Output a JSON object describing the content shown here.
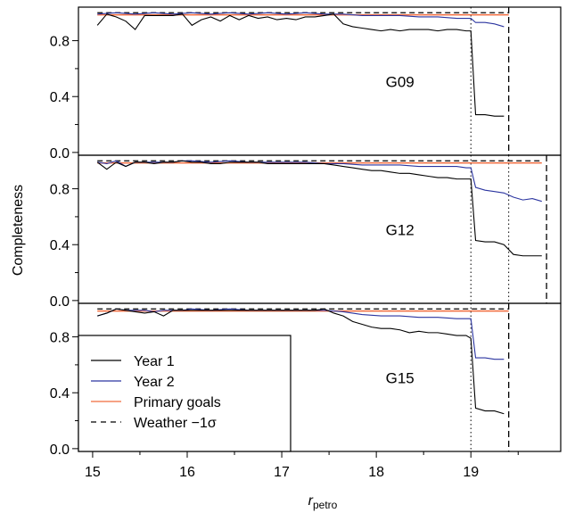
{
  "chart_data": {
    "type": "line",
    "ylabel": "Completeness",
    "xlabel": "r",
    "xlabel_sub": "petro",
    "xlim": [
      14.85,
      19.95
    ],
    "ylim": [
      -0.02,
      1.04
    ],
    "xticks": [
      15,
      16,
      17,
      18,
      19
    ],
    "xtick_labels": [
      "15",
      "16",
      "17",
      "18",
      "19"
    ],
    "yticks": [
      0.0,
      0.4,
      0.8
    ],
    "ytick_labels": [
      "0.0",
      "0.4",
      "0.8"
    ],
    "legend": {
      "position": "bottom-left",
      "entries": [
        {
          "label": "Year 1",
          "color": "#000000",
          "dash": "solid"
        },
        {
          "label": "Year 2",
          "color": "#2b35a0",
          "dash": "solid"
        },
        {
          "label": "Primary goals",
          "color": "#f06a3c",
          "dash": "solid"
        },
        {
          "label": "Weather −1σ",
          "color": "#000000",
          "dash": "dashed"
        }
      ]
    },
    "colors": {
      "year1": "#000000",
      "year2": "#2b35a0",
      "primary": "#f06a3c"
    },
    "panels": [
      {
        "label": "G09",
        "primary_x": [
          15.05,
          19.4
        ],
        "primary_y": [
          0.985,
          0.985
        ],
        "weather_y": 1.0,
        "dotted_x": 19.0,
        "dashed_x": 19.4,
        "year1": {
          "x": [
            15.05,
            15.15,
            15.25,
            15.35,
            15.45,
            15.55,
            15.65,
            15.75,
            15.85,
            15.95,
            16.05,
            16.15,
            16.25,
            16.35,
            16.45,
            16.55,
            16.65,
            16.75,
            16.85,
            16.95,
            17.05,
            17.15,
            17.25,
            17.35,
            17.45,
            17.55,
            17.65,
            17.75,
            17.85,
            17.95,
            18.05,
            18.15,
            18.25,
            18.35,
            18.45,
            18.55,
            18.65,
            18.75,
            18.85,
            18.95,
            19.0,
            19.05,
            19.15,
            19.25,
            19.35
          ],
          "y": [
            0.91,
            0.99,
            0.97,
            0.94,
            0.88,
            0.98,
            0.98,
            0.98,
            0.98,
            0.99,
            0.91,
            0.95,
            0.97,
            0.94,
            0.98,
            0.95,
            0.98,
            0.96,
            0.97,
            0.95,
            0.96,
            0.95,
            0.97,
            0.97,
            0.98,
            0.99,
            0.92,
            0.9,
            0.89,
            0.88,
            0.87,
            0.88,
            0.87,
            0.88,
            0.88,
            0.88,
            0.87,
            0.88,
            0.88,
            0.87,
            0.87,
            0.27,
            0.27,
            0.26,
            0.26
          ]
        },
        "year2": {
          "x": [
            15.05,
            15.25,
            15.45,
            15.65,
            15.85,
            16.05,
            16.25,
            16.45,
            16.65,
            16.85,
            17.05,
            17.25,
            17.45,
            17.65,
            17.85,
            18.05,
            18.25,
            18.45,
            18.65,
            18.85,
            18.95,
            19.0,
            19.05,
            19.15,
            19.25,
            19.35
          ],
          "y": [
            0.99,
            1.0,
            0.99,
            1.0,
            0.99,
            1.0,
            0.99,
            1.0,
            0.99,
            1.0,
            0.99,
            1.0,
            0.99,
            0.99,
            0.98,
            0.98,
            0.98,
            0.97,
            0.97,
            0.96,
            0.96,
            0.96,
            0.93,
            0.93,
            0.92,
            0.9
          ]
        }
      },
      {
        "label": "G12",
        "primary_x": [
          15.05,
          19.75
        ],
        "primary_y": [
          0.985,
          0.985
        ],
        "weather_y": 1.0,
        "dotted_x": 19.0,
        "dotted2_x": 19.4,
        "dashed_x": 19.8,
        "year1": {
          "x": [
            15.05,
            15.15,
            15.25,
            15.35,
            15.45,
            15.55,
            15.65,
            15.75,
            15.85,
            15.95,
            16.05,
            16.15,
            16.25,
            16.35,
            16.45,
            16.55,
            16.65,
            16.75,
            16.85,
            16.95,
            17.05,
            17.15,
            17.25,
            17.35,
            17.45,
            17.55,
            17.65,
            17.75,
            17.85,
            17.95,
            18.05,
            18.15,
            18.25,
            18.35,
            18.45,
            18.55,
            18.65,
            18.75,
            18.85,
            18.95,
            19.0,
            19.05,
            19.15,
            19.25,
            19.35,
            19.45,
            19.55,
            19.65,
            19.75
          ],
          "y": [
            0.99,
            0.94,
            0.99,
            0.96,
            0.99,
            0.99,
            0.98,
            0.99,
            0.99,
            1.0,
            0.99,
            0.99,
            0.98,
            0.98,
            0.99,
            0.99,
            0.99,
            0.99,
            0.98,
            0.98,
            0.98,
            0.98,
            0.98,
            0.98,
            0.98,
            0.97,
            0.96,
            0.95,
            0.94,
            0.93,
            0.93,
            0.92,
            0.91,
            0.91,
            0.9,
            0.89,
            0.88,
            0.88,
            0.87,
            0.87,
            0.87,
            0.43,
            0.42,
            0.42,
            0.4,
            0.33,
            0.32,
            0.32,
            0.32
          ]
        },
        "year2": {
          "x": [
            15.05,
            15.15,
            15.25,
            15.35,
            15.45,
            15.55,
            15.65,
            15.75,
            15.85,
            15.95,
            16.05,
            16.25,
            16.45,
            16.65,
            16.85,
            17.05,
            17.25,
            17.45,
            17.65,
            17.85,
            18.05,
            18.25,
            18.45,
            18.65,
            18.85,
            18.95,
            19.0,
            19.05,
            19.15,
            19.25,
            19.35,
            19.45,
            19.55,
            19.65,
            19.75
          ],
          "y": [
            0.99,
            0.98,
            1.0,
            0.96,
            0.99,
            0.99,
            0.99,
            0.99,
            0.99,
            1.0,
            1.0,
            0.99,
            1.0,
            0.99,
            0.99,
            0.99,
            0.99,
            0.98,
            0.98,
            0.97,
            0.97,
            0.97,
            0.96,
            0.96,
            0.96,
            0.95,
            0.95,
            0.81,
            0.79,
            0.78,
            0.77,
            0.74,
            0.72,
            0.73,
            0.71
          ]
        }
      },
      {
        "label": "G15",
        "primary_x": [
          15.05,
          19.4
        ],
        "primary_y": [
          0.985,
          0.985
        ],
        "weather_y": 1.0,
        "dotted_x": 19.0,
        "dashed_x": 19.4,
        "year1": {
          "x": [
            15.05,
            15.15,
            15.25,
            15.35,
            15.45,
            15.55,
            15.65,
            15.75,
            15.85,
            15.95,
            16.05,
            16.15,
            16.25,
            16.35,
            16.45,
            16.55,
            16.65,
            16.75,
            16.85,
            16.95,
            17.05,
            17.15,
            17.25,
            17.35,
            17.45,
            17.55,
            17.65,
            17.75,
            17.85,
            17.95,
            18.05,
            18.15,
            18.25,
            18.35,
            18.45,
            18.55,
            18.65,
            18.75,
            18.85,
            18.95,
            19.0,
            19.05,
            19.15,
            19.25,
            19.35
          ],
          "y": [
            0.95,
            0.97,
            1.0,
            0.99,
            0.98,
            0.97,
            0.98,
            0.95,
            0.99,
            0.99,
            0.99,
            0.99,
            0.99,
            0.99,
            0.99,
            0.99,
            0.99,
            0.99,
            0.99,
            0.99,
            0.99,
            0.99,
            0.99,
            0.99,
            1.0,
            0.97,
            0.95,
            0.91,
            0.89,
            0.87,
            0.86,
            0.86,
            0.85,
            0.83,
            0.84,
            0.83,
            0.83,
            0.82,
            0.81,
            0.81,
            0.79,
            0.29,
            0.27,
            0.27,
            0.25
          ]
        },
        "year2": {
          "x": [
            15.05,
            15.15,
            15.25,
            15.35,
            15.45,
            15.55,
            15.65,
            15.75,
            15.85,
            15.95,
            16.05,
            16.25,
            16.45,
            16.65,
            16.85,
            17.05,
            17.25,
            17.45,
            17.65,
            17.85,
            18.05,
            18.25,
            18.45,
            18.65,
            18.85,
            18.95,
            19.0,
            19.05,
            19.15,
            19.25,
            19.35
          ],
          "y": [
            0.95,
            0.97,
            1.0,
            0.99,
            0.99,
            0.99,
            0.98,
            0.99,
            0.99,
            0.99,
            1.0,
            0.99,
            1.0,
            0.99,
            0.99,
            0.99,
            0.99,
            0.99,
            0.98,
            0.96,
            0.95,
            0.95,
            0.94,
            0.94,
            0.93,
            0.93,
            0.93,
            0.65,
            0.65,
            0.64,
            0.64
          ]
        }
      }
    ]
  }
}
